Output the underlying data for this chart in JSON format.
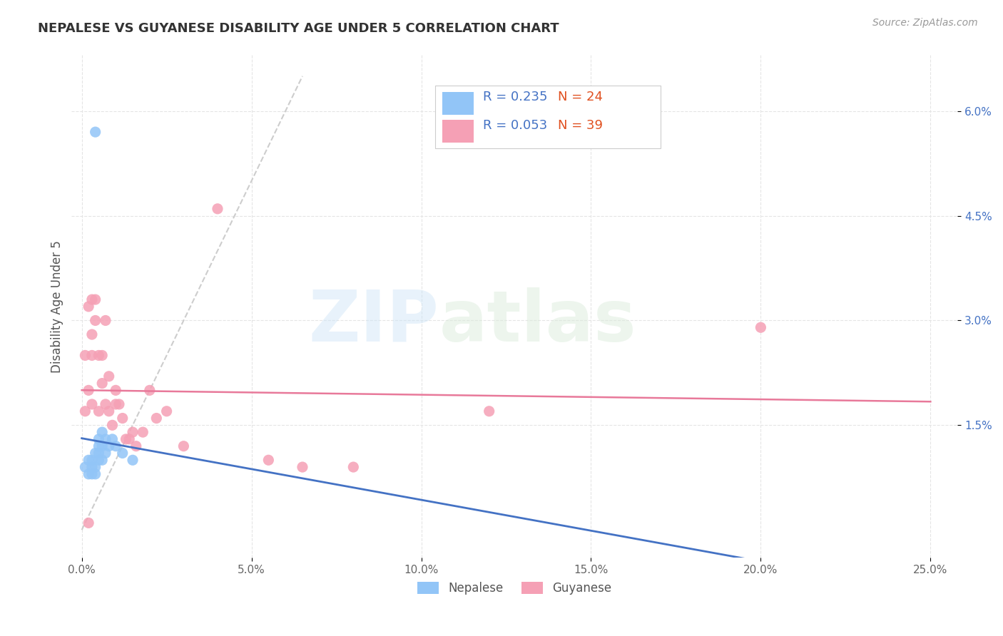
{
  "title": "NEPALESE VS GUYANESE DISABILITY AGE UNDER 5 CORRELATION CHART",
  "source": "Source: ZipAtlas.com",
  "ylabel": "Disability Age Under 5",
  "ytick_labels": [
    "1.5%",
    "3.0%",
    "4.5%",
    "6.0%"
  ],
  "ytick_values": [
    0.015,
    0.03,
    0.045,
    0.06
  ],
  "xtick_labels": [
    "0.0%",
    "5.0%",
    "10.0%",
    "15.0%",
    "20.0%",
    "25.0%"
  ],
  "xtick_values": [
    0.0,
    0.05,
    0.1,
    0.15,
    0.2,
    0.25
  ],
  "xlim": [
    -0.003,
    0.258
  ],
  "ylim": [
    -0.004,
    0.068
  ],
  "watermark_zip": "ZIP",
  "watermark_atlas": "atlas",
  "legend_r_nepalese": "R = 0.235",
  "legend_n_nepalese": "N = 24",
  "legend_r_guyanese": "R = 0.053",
  "legend_n_guyanese": "N = 39",
  "nepalese_color": "#92c5f7",
  "guyanese_color": "#f5a0b5",
  "nepalese_line_color": "#4472c4",
  "guyanese_line_color": "#e8799a",
  "diag_line_color": "#c8c8c8",
  "background_color": "#ffffff",
  "grid_color": "#e5e5e5",
  "nepalese_x": [
    0.001,
    0.002,
    0.002,
    0.003,
    0.003,
    0.003,
    0.004,
    0.004,
    0.004,
    0.005,
    0.005,
    0.005,
    0.005,
    0.006,
    0.006,
    0.006,
    0.007,
    0.007,
    0.008,
    0.009,
    0.01,
    0.012,
    0.015,
    0.004
  ],
  "nepalese_y": [
    0.009,
    0.008,
    0.01,
    0.008,
    0.009,
    0.01,
    0.008,
    0.009,
    0.011,
    0.01,
    0.011,
    0.012,
    0.013,
    0.01,
    0.012,
    0.014,
    0.011,
    0.013,
    0.012,
    0.013,
    0.012,
    0.011,
    0.01,
    0.057
  ],
  "guyanese_x": [
    0.001,
    0.001,
    0.002,
    0.002,
    0.003,
    0.003,
    0.003,
    0.004,
    0.004,
    0.005,
    0.005,
    0.006,
    0.006,
    0.007,
    0.007,
    0.008,
    0.008,
    0.009,
    0.01,
    0.01,
    0.011,
    0.012,
    0.013,
    0.014,
    0.015,
    0.016,
    0.018,
    0.02,
    0.022,
    0.025,
    0.03,
    0.04,
    0.055,
    0.065,
    0.08,
    0.12,
    0.2,
    0.003,
    0.002
  ],
  "guyanese_y": [
    0.017,
    0.025,
    0.02,
    0.032,
    0.025,
    0.033,
    0.028,
    0.03,
    0.033,
    0.025,
    0.017,
    0.021,
    0.025,
    0.018,
    0.03,
    0.022,
    0.017,
    0.015,
    0.018,
    0.02,
    0.018,
    0.016,
    0.013,
    0.013,
    0.014,
    0.012,
    0.014,
    0.02,
    0.016,
    0.017,
    0.012,
    0.046,
    0.01,
    0.009,
    0.009,
    0.017,
    0.029,
    0.018,
    0.001
  ]
}
